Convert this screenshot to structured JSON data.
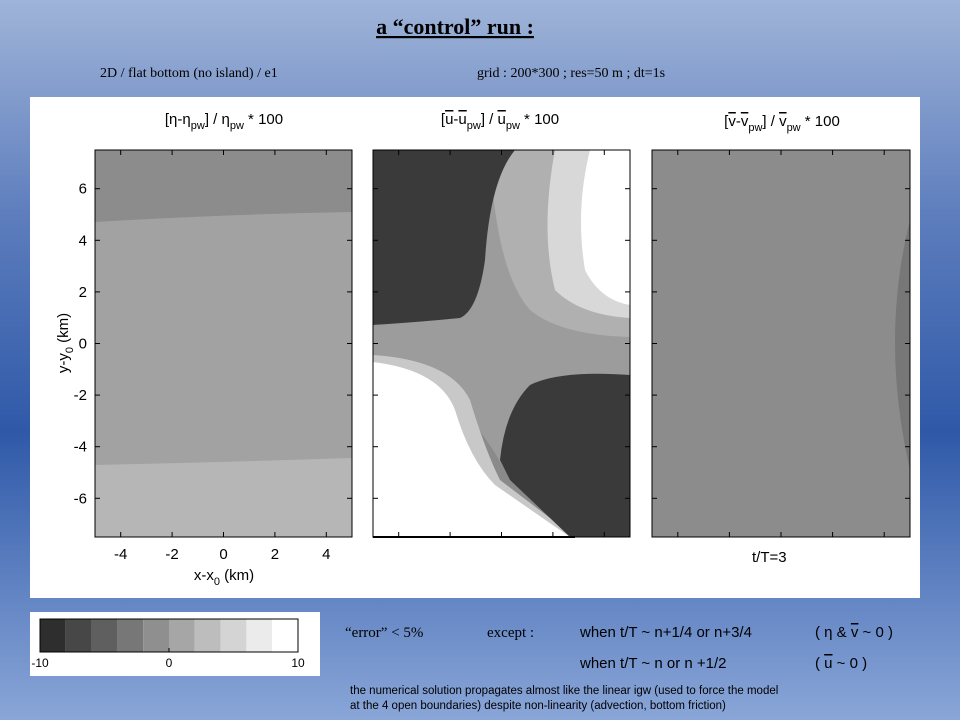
{
  "title": "a “control” run :",
  "subtitle_left": "2D / flat bottom (no island) / e1",
  "subtitle_right": "grid : 200*300  ;  res=50 m  ;  dt=1s",
  "panels": [
    {
      "title_parts": [
        "[η-η",
        "pw",
        "] / η",
        "pw",
        " * 100"
      ]
    },
    {
      "title_parts": [
        "[",
        "u",
        "-",
        "u",
        "pw",
        "] / ",
        "u",
        "pw",
        " * 100"
      ]
    },
    {
      "title_parts": [
        "[",
        "v",
        "-",
        "v",
        "pw",
        "] / ",
        "v",
        "pw",
        " * 100"
      ]
    }
  ],
  "axes": {
    "xlim": [
      -5,
      5
    ],
    "ylim": [
      -7.5,
      7.5
    ],
    "xticks": [
      -4,
      -2,
      0,
      2,
      4
    ],
    "yticks": [
      -6,
      -4,
      -2,
      0,
      2,
      4,
      6
    ],
    "xlabel_parts": [
      "x-x",
      "0",
      " (km)"
    ],
    "ylabel_parts": [
      "y-y",
      "0",
      " (km)"
    ]
  },
  "time_label": "t/T=3",
  "colorbar": {
    "lim": [
      -10,
      10
    ],
    "ticks": [
      -10,
      0,
      10
    ]
  },
  "notes": {
    "error": "“error” < 5%",
    "except": "except :",
    "when1": "when t/T ~ n+1/4 or n+3/4",
    "cond1_parts": [
      "( η & ",
      "v",
      " ~ 0 )"
    ],
    "when2": "when t/T ~ n or n +1/2",
    "cond2_parts": [
      "( ",
      "u",
      " ~ 0 )"
    ],
    "footnote": [
      "the numerical solution propagates almost like the linear igw (used to force the model",
      "at the 4 open boundaries) despite non-linearity (advection, bottom friction)"
    ]
  }
}
